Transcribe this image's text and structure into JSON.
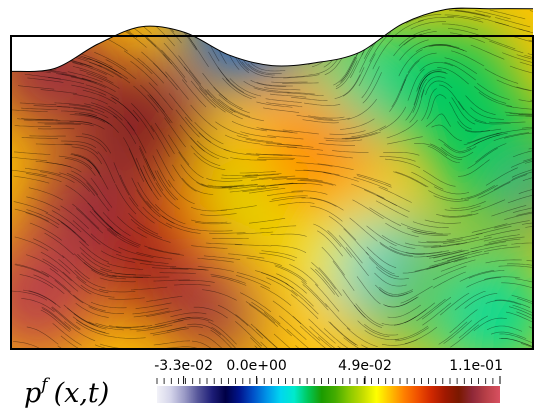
{
  "colorbar": {
    "variable_base": "p",
    "variable_sup": "f",
    "variable_args": "(x,t)",
    "ticks": [
      {
        "label": "-3.3e-02",
        "value": -0.033
      },
      {
        "label": "0.0e+00",
        "value": 0.0
      },
      {
        "label": "4.9e-02",
        "value": 0.049
      },
      {
        "label": "1.1e-01",
        "value": 0.11
      }
    ],
    "range": [
      -0.045,
      0.11
    ],
    "colors": [
      "#f2f2f8",
      "#d4d4ea",
      "#9a9ac6",
      "#555599",
      "#1e1e78",
      "#000046",
      "#00148c",
      "#0050c8",
      "#0094e8",
      "#00d6f0",
      "#00eacc",
      "#00c85a",
      "#1a9c00",
      "#44ac00",
      "#88c800",
      "#c4dc00",
      "#ffff00",
      "#ffc000",
      "#ff8000",
      "#f05000",
      "#d02800",
      "#a01800",
      "#7a1800",
      "#902838",
      "#b84048",
      "#d85060"
    ]
  },
  "plot": {
    "free_surface_profile": [
      0.12,
      0.16,
      0.5,
      0.74,
      0.66,
      0.35,
      0.2,
      0.24,
      0.38,
      0.78,
      0.98,
      0.99,
      0.99
    ],
    "field_blobs": [
      {
        "value": 0.1,
        "u": 0.15,
        "v": 0.6
      },
      {
        "value": 0.095,
        "u": 0.25,
        "v": 0.35
      },
      {
        "value": 0.085,
        "u": 0.3,
        "v": 0.75
      },
      {
        "value": 0.104,
        "u": 0.05,
        "v": 0.85
      },
      {
        "value": 0.1,
        "u": 0.4,
        "v": 0.85
      },
      {
        "value": 0.1,
        "u": 0.07,
        "v": 0.2
      },
      {
        "value": 0.07,
        "u": 0.43,
        "v": 0.6
      },
      {
        "value": 0.05,
        "u": 0.5,
        "v": 0.55
      },
      {
        "value": 0.06,
        "u": 0.58,
        "v": 0.8
      },
      {
        "value": 0.052,
        "u": 0.67,
        "v": 0.72
      },
      {
        "value": 0.01,
        "u": 0.75,
        "v": 0.8
      },
      {
        "value": 0.04,
        "u": 0.82,
        "v": 0.85
      },
      {
        "value": 0.02,
        "u": 0.92,
        "v": 0.9
      },
      {
        "value": 0.028,
        "u": 0.98,
        "v": 0.5
      },
      {
        "value": 0.02,
        "u": 0.7,
        "v": 0.25
      },
      {
        "value": 0.023,
        "u": 0.85,
        "v": 0.25
      },
      {
        "value": 0.023,
        "u": 0.92,
        "v": 0.45
      },
      {
        "value": 0.0,
        "u": 0.45,
        "v": 0.08
      },
      {
        "value": 0.065,
        "u": 0.58,
        "v": 0.45
      },
      {
        "value": -0.03,
        "u": 0.995,
        "v": 0.56
      }
    ]
  }
}
